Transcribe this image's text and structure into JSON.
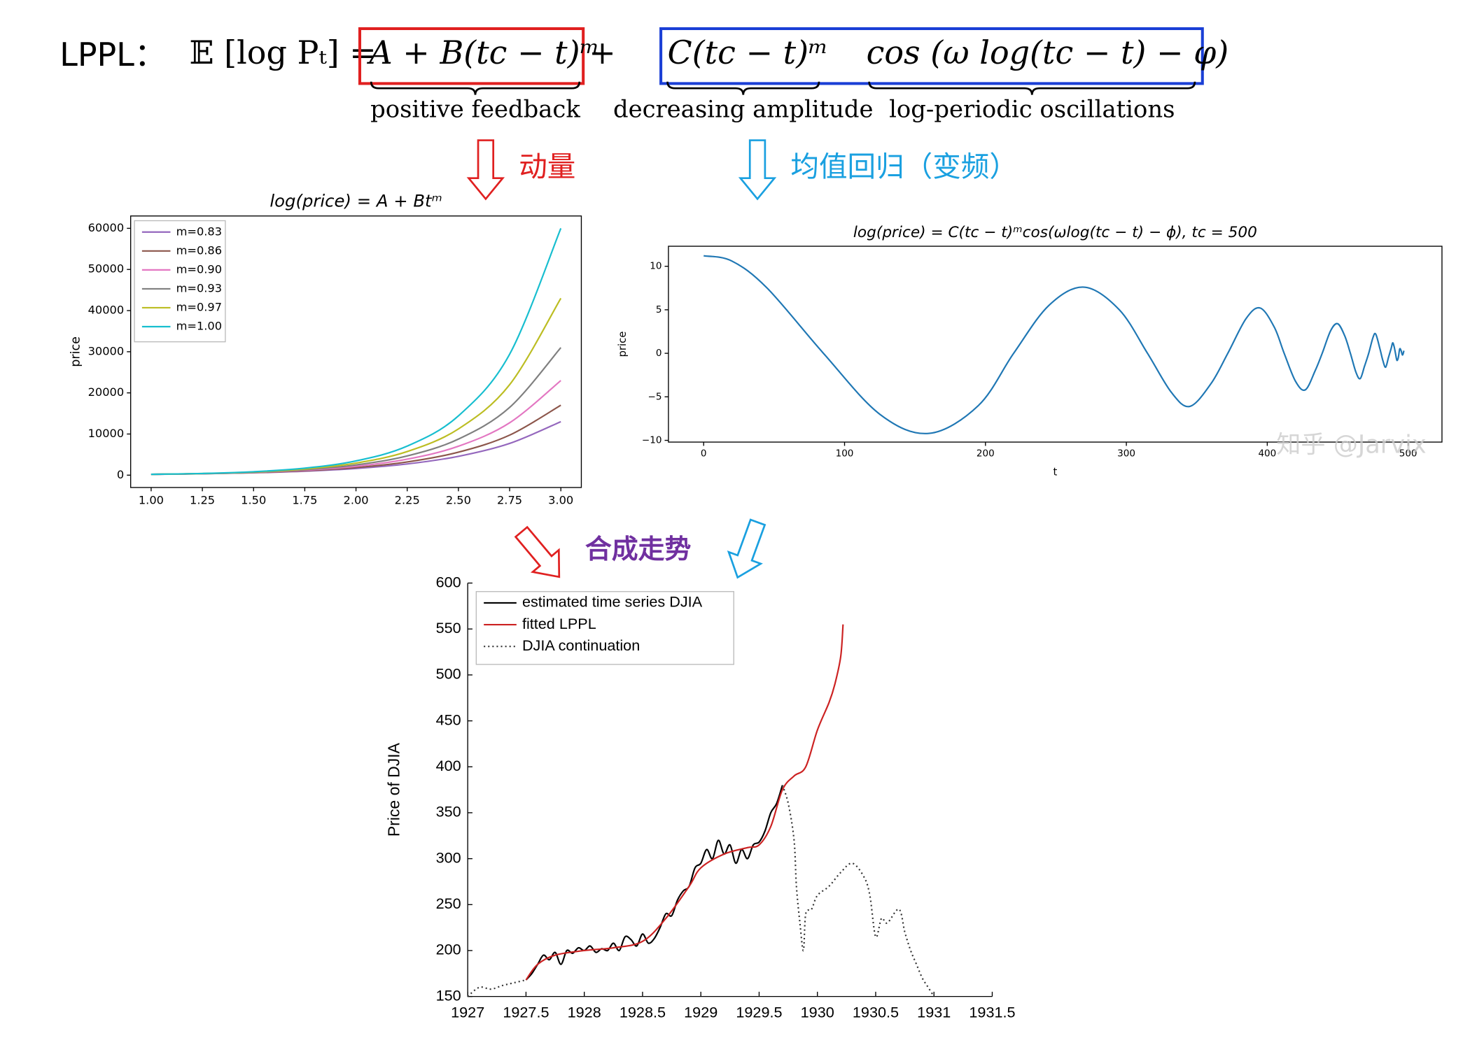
{
  "header": {
    "label": "LPPL：",
    "formula": [
      "𝔼 [log Pₜ] =",
      "A + B(tc − t)ᵐ",
      "+",
      "C(tc − t)ᵐ",
      "cos (ω log(tc − t) − φ)"
    ],
    "terms": [
      "positive feedback",
      "decreasing amplitude",
      "log-periodic oscillations"
    ],
    "arrows": [
      "动量",
      "均值回归（变频）",
      "合成走势"
    ]
  },
  "chart_data": [
    {
      "type": "line",
      "title": "log(price) = A + Btᵐ",
      "ylabel": "price",
      "legend": "upper left",
      "x": [
        1,
        1.25,
        1.5,
        1.75,
        2,
        2.25,
        2.5,
        2.75,
        3
      ],
      "xlim": [
        0.9,
        3.1
      ],
      "ylim": [
        -3000,
        63000
      ],
      "xticks": [
        {
          "value": 1,
          "label": "1.00"
        },
        1.25,
        {
          "value": 1.5,
          "label": "1.50"
        },
        1.75,
        {
          "value": 2,
          "label": "2.00"
        },
        2.25,
        {
          "value": 2.5,
          "label": "2.50"
        },
        2.75,
        {
          "value": 3,
          "label": "3.00"
        }
      ],
      "yticks": [
        0,
        10000,
        20000,
        30000,
        40000,
        50000,
        60000
      ],
      "series": [
        {
          "name": "m=0.83",
          "color": "#9467bd",
          "values": [
            200,
            337,
            568,
            957,
            1612,
            2716,
            4577,
            7712,
            13000
          ]
        },
        {
          "name": "m=0.86",
          "color": "#8c564b",
          "values": [
            200,
            348,
            607,
            1057,
            1841,
            3207,
            5587,
            9733,
            17000
          ]
        },
        {
          "name": "m=0.90",
          "color": "#e377c2",
          "values": [
            200,
            362,
            655,
            1186,
            2147,
            3886,
            7033,
            12730,
            23000
          ]
        },
        {
          "name": "m=0.93",
          "color": "#7f7f7f",
          "values": [
            200,
            376,
            705,
            1324,
            2487,
            4670,
            8771,
            16473,
            31000
          ]
        },
        {
          "name": "m=0.97",
          "color": "#bcbd22",
          "values": [
            200,
            391,
            766,
            1499,
            2934,
            5742,
            11237,
            21992,
            43000
          ]
        },
        {
          "name": "m=1.00",
          "color": "#17becf",
          "values": [
            200,
            408,
            832,
            1697,
            3462,
            7063,
            14410,
            29400,
            60000
          ]
        }
      ]
    },
    {
      "type": "line",
      "title": "log(price) = C(tc − t)ᵐcos(ωlog(tc − t) − ϕ), tc = 500",
      "xlabel": "t",
      "ylabel": "price",
      "watermark": "知乎 @Jarvix",
      "x": [
        0,
        20,
        45,
        85,
        125,
        160,
        195,
        220,
        245,
        270,
        295,
        315,
        332,
        345,
        360,
        372,
        385,
        395,
        405,
        412,
        420,
        427,
        434,
        439,
        445,
        450,
        455,
        459,
        463,
        466,
        469,
        472,
        475,
        477,
        480,
        482,
        484,
        486,
        488,
        489,
        490,
        491,
        492,
        493,
        494,
        495,
        496,
        497
      ],
      "xlim": [
        -25,
        524
      ],
      "ylim": [
        -10.2,
        12.3
      ],
      "xticks": [
        0,
        100,
        200,
        300,
        400,
        500
      ],
      "yticks": [
        {
          "value": -10,
          "label": "−10"
        },
        {
          "value": -5,
          "label": "−5"
        },
        0,
        5,
        10
      ],
      "series": [
        {
          "color": "#1f77b4",
          "values": [
            11.2,
            10.6,
            7.5,
            0,
            -7,
            -9.2,
            -6,
            0,
            5.5,
            7.6,
            5,
            0,
            -4.5,
            -6.1,
            -3.5,
            0,
            4,
            5.2,
            3,
            0,
            -3.2,
            -4.2,
            -2,
            0,
            2.6,
            3.4,
            2,
            0,
            -2.2,
            -2.9,
            -1.5,
            0,
            1.8,
            2.2,
            0.5,
            -0.8,
            -1.6,
            -0.5,
            0.6,
            1.2,
            0.8,
            0,
            -0.8,
            -0.5,
            0.5,
            0.3,
            -0.2,
            0.3
          ]
        }
      ]
    },
    {
      "type": "line",
      "ylabel": "Price of DJIA",
      "legend": "upper left",
      "xlim": [
        1927,
        1931.5
      ],
      "ylim": [
        150,
        600
      ],
      "xticks": [
        1927,
        1927.5,
        1928,
        1928.5,
        1929,
        1929.5,
        1930,
        1930.5,
        1931,
        1931.5
      ],
      "yticks": [
        150,
        200,
        250,
        300,
        350,
        400,
        450,
        500,
        550,
        600
      ],
      "series": [
        {
          "name": "estimated time series DJIA",
          "color": "#000000",
          "dash": "solid",
          "x": [
            1927.5,
            1927.55,
            1927.6,
            1927.65,
            1927.7,
            1927.75,
            1927.8,
            1927.85,
            1927.9,
            1927.95,
            1928,
            1928.05,
            1928.1,
            1928.15,
            1928.2,
            1928.25,
            1928.3,
            1928.35,
            1928.4,
            1928.45,
            1928.5,
            1928.55,
            1928.6,
            1928.65,
            1928.7,
            1928.75,
            1928.8,
            1928.85,
            1928.9,
            1928.95,
            1929,
            1929.05,
            1929.1,
            1929.15,
            1929.2,
            1929.25,
            1929.3,
            1929.35,
            1929.4,
            1929.45,
            1929.5,
            1929.55,
            1929.6,
            1929.65,
            1929.7
          ],
          "values": [
            168,
            175,
            185,
            195,
            190,
            198,
            185,
            200,
            197,
            203,
            200,
            205,
            198,
            202,
            200,
            208,
            200,
            215,
            212,
            205,
            218,
            208,
            213,
            225,
            240,
            238,
            255,
            265,
            270,
            290,
            295,
            310,
            300,
            320,
            305,
            315,
            295,
            310,
            300,
            315,
            318,
            330,
            350,
            360,
            380
          ]
        },
        {
          "name": "fitted LPPL",
          "color": "#cc2222",
          "dash": "solid",
          "x": [
            1927.5,
            1927.6,
            1927.75,
            1928,
            1928.25,
            1928.5,
            1928.7,
            1928.9,
            1929,
            1929.2,
            1929.4,
            1929.5,
            1929.6,
            1929.7,
            1929.8,
            1929.9,
            1930,
            1930.1,
            1930.15,
            1930.2,
            1930.22
          ],
          "values": [
            168,
            185,
            195,
            200,
            203,
            210,
            235,
            270,
            290,
            305,
            312,
            315,
            335,
            375,
            390,
            400,
            440,
            470,
            490,
            520,
            555
          ]
        },
        {
          "name": "DJIA continuation",
          "color": "#333333",
          "dash": "dotted",
          "x": [
            1927,
            1927.1,
            1927.2,
            1927.3,
            1927.4,
            1927.5,
            null,
            1929.7,
            1929.75,
            1929.8,
            1929.82,
            1929.85,
            1929.88,
            1929.9,
            1929.95,
            1930,
            1930.1,
            1930.2,
            1930.3,
            1930.4,
            1930.45,
            1930.5,
            1930.55,
            1930.6,
            1930.7,
            1930.75,
            1930.8,
            1930.85,
            1930.9,
            1930.95,
            1931
          ],
          "values": [
            150,
            160,
            158,
            162,
            165,
            168,
            null,
            380,
            360,
            320,
            270,
            230,
            200,
            240,
            245,
            260,
            270,
            285,
            295,
            280,
            260,
            215,
            235,
            230,
            245,
            220,
            200,
            185,
            170,
            160,
            150
          ]
        }
      ]
    }
  ]
}
